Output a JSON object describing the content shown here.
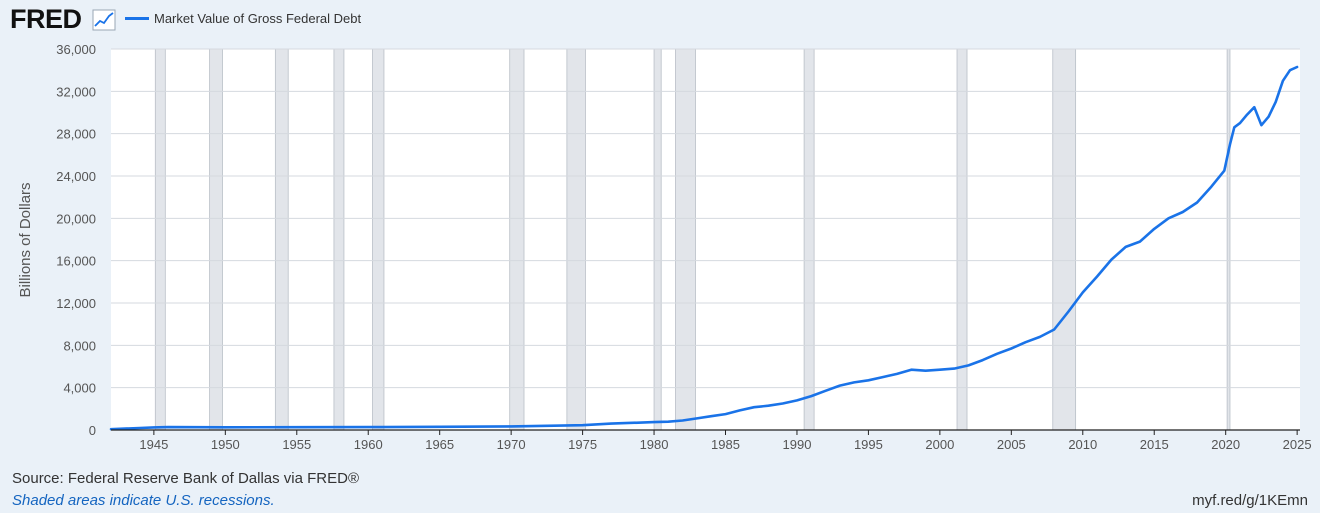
{
  "header": {
    "logo_text": "FRED",
    "logo_icon": "trend-chart-icon",
    "legend_label": "Market Value of Gross Federal Debt"
  },
  "footer": {
    "source": "Source: Federal Reserve Bank of Dallas via FRED®",
    "recession_note": "Shaded areas indicate U.S. recessions.",
    "short_url": "myf.red/g/1KEmn"
  },
  "colors": {
    "line": "#1a73e8",
    "background": "#eaf1f8",
    "plot_background": "#ffffff",
    "recession": "#e2e5ea",
    "grid": "#d5d9df"
  },
  "chart_data": {
    "type": "line",
    "title": "",
    "xlabel": "",
    "ylabel": "Billions of Dollars",
    "xlim": [
      1942,
      2025.2
    ],
    "ylim": [
      0,
      36000
    ],
    "yticks": [
      0,
      4000,
      8000,
      12000,
      16000,
      20000,
      24000,
      28000,
      32000,
      36000
    ],
    "ytick_labels": [
      "0",
      "4,000",
      "8,000",
      "12,000",
      "16,000",
      "20,000",
      "24,000",
      "28,000",
      "32,000",
      "36,000"
    ],
    "xticks": [
      1945,
      1950,
      1955,
      1960,
      1965,
      1970,
      1975,
      1980,
      1985,
      1990,
      1995,
      2000,
      2005,
      2010,
      2015,
      2020,
      2025
    ],
    "xtick_labels": [
      "1945",
      "1950",
      "1955",
      "1960",
      "1965",
      "1970",
      "1975",
      "1980",
      "1985",
      "1990",
      "1995",
      "2000",
      "2005",
      "2010",
      "2015",
      "2020",
      "2025"
    ],
    "grid": true,
    "legend_position": "top-left",
    "recessions": [
      [
        1945.1,
        1945.8
      ],
      [
        1948.9,
        1949.8
      ],
      [
        1953.5,
        1954.4
      ],
      [
        1957.6,
        1958.3
      ],
      [
        1960.3,
        1961.1
      ],
      [
        1969.9,
        1970.9
      ],
      [
        1973.9,
        1975.2
      ],
      [
        1980.0,
        1980.5
      ],
      [
        1981.5,
        1982.9
      ],
      [
        1990.5,
        1991.2
      ],
      [
        2001.2,
        2001.9
      ],
      [
        2007.9,
        2009.5
      ],
      [
        2020.1,
        2020.3
      ]
    ],
    "series": [
      {
        "name": "Market Value of Gross Federal Debt",
        "points": [
          [
            1942.0,
            80
          ],
          [
            1943.0,
            130
          ],
          [
            1944.0,
            190
          ],
          [
            1945.0,
            250
          ],
          [
            1946.0,
            270
          ],
          [
            1948.0,
            260
          ],
          [
            1950.0,
            255
          ],
          [
            1955.0,
            265
          ],
          [
            1960.0,
            270
          ],
          [
            1965.0,
            300
          ],
          [
            1970.0,
            340
          ],
          [
            1972.0,
            390
          ],
          [
            1975.0,
            450
          ],
          [
            1977.0,
            600
          ],
          [
            1980.0,
            750
          ],
          [
            1981.0,
            780
          ],
          [
            1982.0,
            900
          ],
          [
            1983.0,
            1100
          ],
          [
            1984.0,
            1300
          ],
          [
            1985.0,
            1500
          ],
          [
            1986.0,
            1850
          ],
          [
            1987.0,
            2150
          ],
          [
            1988.0,
            2300
          ],
          [
            1989.0,
            2500
          ],
          [
            1990.0,
            2800
          ],
          [
            1991.0,
            3200
          ],
          [
            1992.0,
            3700
          ],
          [
            1993.0,
            4200
          ],
          [
            1994.0,
            4500
          ],
          [
            1995.0,
            4700
          ],
          [
            1996.0,
            5000
          ],
          [
            1997.0,
            5300
          ],
          [
            1998.0,
            5700
          ],
          [
            1999.0,
            5600
          ],
          [
            2000.0,
            5700
          ],
          [
            2001.0,
            5800
          ],
          [
            2002.0,
            6100
          ],
          [
            2003.0,
            6600
          ],
          [
            2004.0,
            7200
          ],
          [
            2005.0,
            7700
          ],
          [
            2006.0,
            8300
          ],
          [
            2007.0,
            8800
          ],
          [
            2008.0,
            9500
          ],
          [
            2009.0,
            11200
          ],
          [
            2010.0,
            13000
          ],
          [
            2011.0,
            14500
          ],
          [
            2012.0,
            16100
          ],
          [
            2013.0,
            17300
          ],
          [
            2014.0,
            17800
          ],
          [
            2015.0,
            19000
          ],
          [
            2016.0,
            20000
          ],
          [
            2017.0,
            20600
          ],
          [
            2018.0,
            21500
          ],
          [
            2019.0,
            23000
          ],
          [
            2019.9,
            24500
          ],
          [
            2020.3,
            27000
          ],
          [
            2020.6,
            28600
          ],
          [
            2021.0,
            29000
          ],
          [
            2021.5,
            29800
          ],
          [
            2022.0,
            30500
          ],
          [
            2022.5,
            28800
          ],
          [
            2023.0,
            29600
          ],
          [
            2023.5,
            31000
          ],
          [
            2024.0,
            33000
          ],
          [
            2024.5,
            34000
          ],
          [
            2025.0,
            34300
          ]
        ]
      }
    ]
  }
}
